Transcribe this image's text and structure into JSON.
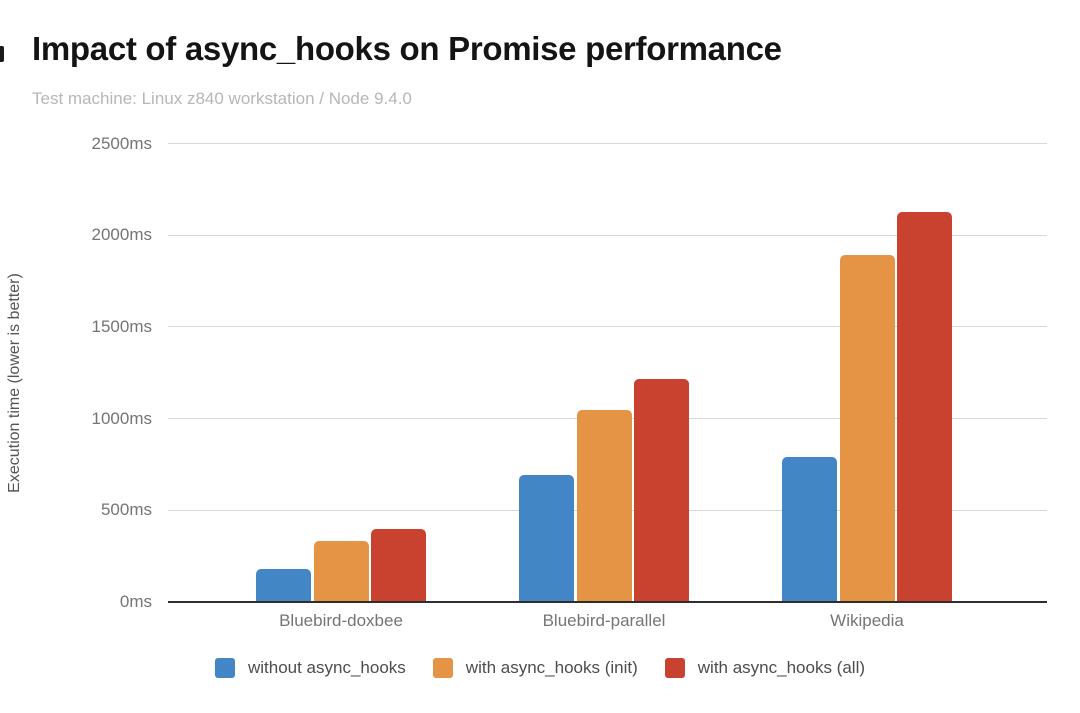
{
  "page": {
    "title": "Impact of async_hooks on Promise performance",
    "subtitle": "Test machine: Linux z840 workstation / Node 9.4.0"
  },
  "chart_data": {
    "type": "bar",
    "title": "Impact of async_hooks on Promise performance",
    "subtitle": "Test machine: Linux z840 workstation / Node 9.4.0",
    "categories": [
      "Bluebird-doxbee",
      "Bluebird-parallel",
      "Wikipedia"
    ],
    "series": [
      {
        "name": "without async_hooks",
        "color": "#4386C6",
        "values": [
          180,
          690,
          790
        ]
      },
      {
        "name": "with async_hooks (init)",
        "color": "#E59344",
        "values": [
          330,
          1045,
          1890
        ]
      },
      {
        "name": "with async_hooks (all)",
        "color": "#C9422F",
        "values": [
          400,
          1215,
          2125
        ]
      }
    ],
    "xlabel": "",
    "ylabel": "Execution time (lower is better)",
    "y_ticks": [
      {
        "label": "0ms",
        "value": 0
      },
      {
        "label": "500ms",
        "value": 500
      },
      {
        "label": "1000ms",
        "value": 1000
      },
      {
        "label": "1500ms",
        "value": 1500
      },
      {
        "label": "2000ms",
        "value": 2000
      },
      {
        "label": "2500ms",
        "value": 2500
      }
    ],
    "ylim": [
      0,
      2500
    ],
    "grid": true,
    "legend_position": "bottom"
  },
  "theme": {
    "background": "#FFFFFF",
    "title_color": "#141414",
    "subtitle_color": "#B7B7B7",
    "grid_color": "#D9D9D9",
    "axis_color": "#2E2E2E",
    "tick_label_color": "#757575",
    "legend_text_color": "#4D4D4D",
    "y_axis_title_color": "#555555"
  }
}
